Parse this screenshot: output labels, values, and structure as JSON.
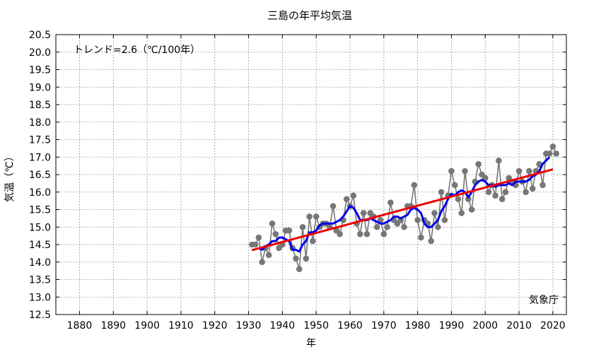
{
  "chart_data": {
    "type": "line",
    "title": "三島の年平均気温",
    "xlabel": "年",
    "ylabel": "気温（℃）",
    "xlim": [
      1873,
      2024
    ],
    "ylim": [
      12.5,
      20.5
    ],
    "x_ticks": [
      1880,
      1890,
      1900,
      1910,
      1920,
      1930,
      1940,
      1950,
      1960,
      1970,
      1980,
      1990,
      2000,
      2010,
      2020
    ],
    "y_ticks": [
      12.5,
      13.0,
      13.5,
      14.0,
      14.5,
      15.0,
      15.5,
      16.0,
      16.5,
      17.0,
      17.5,
      18.0,
      18.5,
      19.0,
      19.5,
      20.0,
      20.5
    ],
    "y_tick_labels": [
      "12.5",
      "13.0",
      "13.5",
      "14.0",
      "14.5",
      "15.0",
      "15.5",
      "16.0",
      "16.5",
      "17.0",
      "17.5",
      "18.0",
      "18.5",
      "19.0",
      "19.5",
      "20.0",
      "20.5"
    ],
    "grid": true,
    "trend_text": "トレンド=2.6（℃/100年）",
    "source_text": "気象庁",
    "colors": {
      "annual": "#777777",
      "moving_average": "#0000ee",
      "trend": "#ee0000"
    },
    "series": [
      {
        "role": "annual",
        "x": [
          1931,
          1932,
          1933,
          1934,
          1935,
          1936,
          1937,
          1938,
          1939,
          1940,
          1941,
          1942,
          1943,
          1944,
          1945,
          1946,
          1947,
          1948,
          1949,
          1950,
          1951,
          1952,
          1953,
          1954,
          1955,
          1956,
          1957,
          1958,
          1959,
          1960,
          1961,
          1962,
          1963,
          1964,
          1965,
          1966,
          1967,
          1968,
          1969,
          1970,
          1971,
          1972,
          1973,
          1974,
          1975,
          1976,
          1977,
          1978,
          1979,
          1980,
          1981,
          1982,
          1983,
          1984,
          1985,
          1986,
          1987,
          1988,
          1989,
          1990,
          1991,
          1992,
          1993,
          1994,
          1995,
          1996,
          1997,
          1998,
          1999,
          2000,
          2001,
          2002,
          2003,
          2004,
          2005,
          2006,
          2007,
          2008,
          2009,
          2010,
          2011,
          2012,
          2013,
          2014,
          2015,
          2016,
          2017,
          2018,
          2019,
          2020,
          2021
        ],
        "y": [
          14.5,
          14.5,
          14.7,
          14.0,
          14.4,
          14.2,
          15.1,
          14.8,
          14.4,
          14.5,
          14.9,
          14.9,
          14.4,
          14.1,
          13.8,
          15.0,
          14.1,
          15.3,
          14.6,
          15.3,
          15.0,
          15.1,
          15.1,
          15.0,
          15.6,
          14.9,
          14.8,
          15.2,
          15.8,
          15.6,
          15.9,
          15.1,
          14.8,
          15.4,
          14.8,
          15.4,
          15.3,
          15.0,
          15.2,
          14.8,
          15.0,
          15.7,
          15.2,
          15.1,
          15.2,
          15.0,
          15.6,
          15.6,
          16.2,
          15.2,
          14.7,
          15.2,
          15.1,
          14.6,
          15.4,
          15.0,
          16.0,
          15.2,
          15.9,
          16.6,
          16.2,
          15.8,
          15.4,
          16.6,
          15.8,
          15.5,
          16.3,
          16.8,
          16.5,
          16.4,
          16.0,
          16.2,
          15.9,
          16.9,
          15.8,
          16.0,
          16.4,
          16.3,
          16.2,
          16.6,
          16.3,
          16.0,
          16.6,
          16.1,
          16.6,
          16.8,
          16.2,
          17.1,
          17.1,
          17.3,
          17.1
        ]
      },
      {
        "role": "moving_average",
        "x": [
          1933,
          1934,
          1935,
          1936,
          1937,
          1938,
          1939,
          1940,
          1941,
          1942,
          1943,
          1944,
          1945,
          1946,
          1947,
          1948,
          1949,
          1950,
          1951,
          1952,
          1953,
          1954,
          1955,
          1956,
          1957,
          1958,
          1959,
          1960,
          1961,
          1962,
          1963,
          1964,
          1965,
          1966,
          1967,
          1968,
          1969,
          1970,
          1971,
          1972,
          1973,
          1974,
          1975,
          1976,
          1977,
          1978,
          1979,
          1980,
          1981,
          1982,
          1983,
          1984,
          1985,
          1986,
          1987,
          1988,
          1989,
          1990,
          1991,
          1992,
          1993,
          1994,
          1995,
          1996,
          1997,
          1998,
          1999,
          2000,
          2001,
          2002,
          2003,
          2004,
          2005,
          2006,
          2007,
          2008,
          2009,
          2010,
          2011,
          2012,
          2013,
          2014,
          2015,
          2016,
          2017,
          2018,
          2019
        ],
        "y": [
          14.4,
          14.35,
          14.45,
          14.5,
          14.6,
          14.6,
          14.7,
          14.7,
          14.65,
          14.6,
          14.35,
          14.35,
          14.3,
          14.5,
          14.6,
          14.85,
          14.85,
          14.9,
          15.05,
          15.1,
          15.1,
          15.1,
          15.1,
          15.15,
          15.2,
          15.3,
          15.45,
          15.6,
          15.55,
          15.4,
          15.2,
          15.2,
          15.2,
          15.25,
          15.2,
          15.15,
          15.1,
          15.1,
          15.15,
          15.2,
          15.3,
          15.3,
          15.25,
          15.3,
          15.35,
          15.5,
          15.55,
          15.5,
          15.4,
          15.1,
          15.0,
          15.0,
          15.1,
          15.2,
          15.45,
          15.6,
          15.8,
          15.95,
          15.9,
          16.0,
          16.05,
          16.0,
          15.85,
          16.0,
          16.2,
          16.3,
          16.35,
          16.3,
          16.2,
          16.2,
          16.15,
          16.2,
          16.2,
          16.2,
          16.25,
          16.2,
          16.3,
          16.3,
          16.3,
          16.3,
          16.35,
          16.45,
          16.5,
          16.6,
          16.8,
          16.9,
          17.0
        ]
      },
      {
        "role": "trend",
        "x": [
          1931,
          2020
        ],
        "y": [
          14.34,
          16.65
        ]
      }
    ]
  }
}
